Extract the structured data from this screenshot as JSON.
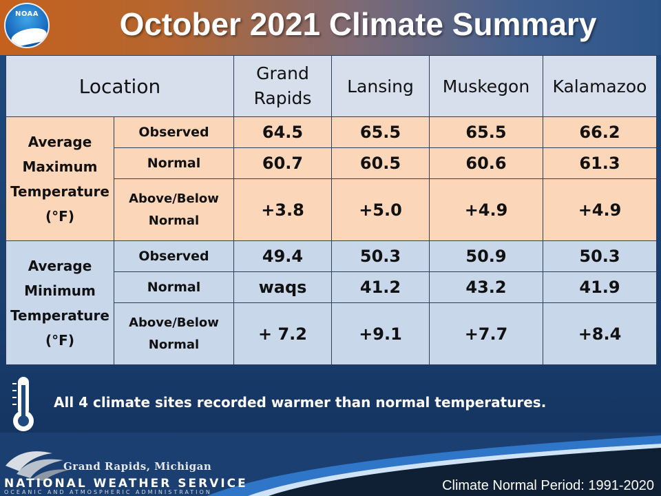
{
  "title": "October 2021 Climate Summary",
  "logo": {
    "text": "NOAA"
  },
  "table": {
    "location_header": "Location",
    "stations": [
      "Grand Rapids",
      "Lansing",
      "Muskegon",
      "Kalamazoo"
    ],
    "groups": [
      {
        "label_lines": [
          "Average",
          "Maximum",
          "Temperature",
          "(°F)"
        ],
        "rows": [
          {
            "label_lines": [
              "Observed"
            ],
            "values": [
              "64.5",
              "65.5",
              "65.5",
              "66.2"
            ]
          },
          {
            "label_lines": [
              "Normal"
            ],
            "values": [
              "60.7",
              "60.5",
              "60.6",
              "61.3"
            ]
          },
          {
            "label_lines": [
              "Above/Below",
              "Normal"
            ],
            "values": [
              "+3.8",
              "+5.0",
              "+4.9",
              "+4.9"
            ]
          }
        ]
      },
      {
        "label_lines": [
          "Average",
          "Minimum",
          "Temperature",
          "(°F)"
        ],
        "rows": [
          {
            "label_lines": [
              "Observed"
            ],
            "values": [
              "49.4",
              "50.3",
              "50.9",
              "50.3"
            ]
          },
          {
            "label_lines": [
              "Normal"
            ],
            "values": [
              "waqs",
              "41.2",
              "43.2",
              "41.9"
            ]
          },
          {
            "label_lines": [
              "Above/Below",
              "Normal"
            ],
            "values": [
              "+ 7.2",
              "+9.1",
              "+7.7",
              "+8.4"
            ]
          }
        ]
      }
    ]
  },
  "note": "All 4 climate sites recorded warmer than normal temperatures.",
  "footer": {
    "office": "Grand Rapids, Michigan",
    "agency": "NATIONAL WEATHER SERVICE",
    "parent": "OCEANIC AND ATMOSPHERIC ADMINISTRATION",
    "period": "Climate Normal Period: 1991-2020"
  },
  "colors": {
    "max_fill": "#fcd6b8",
    "min_fill": "#c9d7eb",
    "header_fill": "#d6dfeb",
    "departure_text": "#8b1a1a"
  },
  "icons": [
    "thermometer-icon",
    "noaa-logo",
    "nws-emblem"
  ]
}
